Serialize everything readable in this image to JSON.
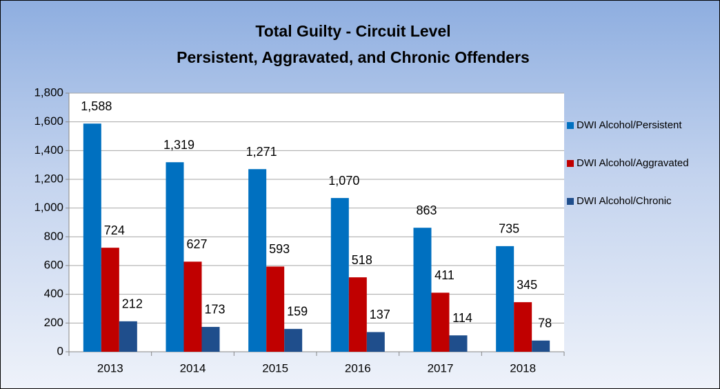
{
  "chart_data": {
    "type": "bar",
    "title": [
      "Total Guilty - Circuit Level",
      "Persistent, Aggravated, and Chronic Offenders"
    ],
    "categories": [
      "2013",
      "2014",
      "2015",
      "2016",
      "2017",
      "2018"
    ],
    "series": [
      {
        "name": "DWI Alcohol/Persistent",
        "color": "#0070c0",
        "values": [
          1588,
          1319,
          1271,
          1070,
          863,
          735
        ],
        "value_labels": [
          "1,588",
          "1,319",
          "1,271",
          "1,070",
          "863",
          "735"
        ]
      },
      {
        "name": "DWI Alcohol/Aggravated",
        "color": "#c00000",
        "values": [
          724,
          627,
          593,
          518,
          411,
          345
        ]
      },
      {
        "name": "DWI Alcohol/Chronic",
        "color": "#1f4e8c",
        "values": [
          212,
          173,
          159,
          137,
          114,
          78
        ]
      }
    ],
    "ylim": [
      0,
      1800
    ],
    "yticks": [
      0,
      200,
      400,
      600,
      800,
      {
        "value": 1000,
        "label": "1,000"
      },
      {
        "value": 1200,
        "label": "1,200"
      },
      {
        "value": 1400,
        "label": "1,400"
      },
      {
        "value": 1600,
        "label": "1,600"
      },
      {
        "value": 1800,
        "label": "1,800"
      }
    ],
    "grid": true,
    "legend": "right"
  }
}
